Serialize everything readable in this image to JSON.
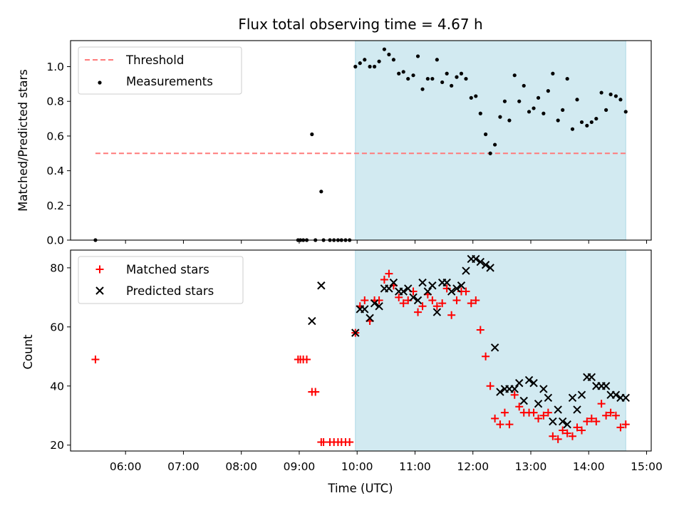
{
  "chart_data": [
    {
      "type": "scatter",
      "title": "Flux total observing time = 4.67 h",
      "xlabel": "",
      "ylabel": "Matched/Predicted stars",
      "ylim": [
        0,
        1.15
      ],
      "yticks": [
        "0.0",
        "0.2",
        "0.4",
        "0.6",
        "0.8",
        "1.0"
      ],
      "ytick_values": [
        0,
        0.2,
        0.4,
        0.6,
        0.8,
        1.0
      ],
      "xlim": [
        5.05,
        15.08
      ],
      "shaded_interval": [
        9.97,
        14.64
      ],
      "shade_color": "#add8e6",
      "legend_placement": "upper-left",
      "series": [
        {
          "name": "Threshold",
          "kind": "dashed-line",
          "color": "#ff7b7b",
          "x": [
            5.48,
            14.64
          ],
          "y": [
            0.5,
            0.5
          ]
        },
        {
          "name": "Measurements",
          "kind": "dot",
          "color": "#000000",
          "x": [
            5.48,
            8.98,
            9.02,
            9.07,
            9.13,
            9.22,
            9.28,
            9.38,
            9.42,
            9.53,
            9.6,
            9.67,
            9.73,
            9.8,
            9.87,
            9.97,
            10.05,
            10.13,
            10.22,
            10.3,
            10.38,
            10.47,
            10.55,
            10.63,
            10.72,
            10.8,
            10.88,
            10.97,
            11.05,
            11.13,
            11.22,
            11.3,
            11.38,
            11.47,
            11.55,
            11.63,
            11.72,
            11.8,
            11.88,
            11.97,
            12.05,
            12.13,
            12.22,
            12.3,
            12.38,
            12.47,
            12.55,
            12.63,
            12.72,
            12.8,
            12.88,
            12.97,
            13.05,
            13.13,
            13.22,
            13.3,
            13.38,
            13.47,
            13.55,
            13.63,
            13.72,
            13.8,
            13.88,
            13.97,
            14.05,
            14.13,
            14.22,
            14.3,
            14.38,
            14.47,
            14.55,
            14.64
          ],
          "y": [
            0.0,
            0.0,
            0.0,
            0.0,
            0.0,
            0.61,
            0.0,
            0.28,
            0.0,
            0.0,
            0.0,
            0.0,
            0.0,
            0.0,
            0.0,
            1.0,
            1.02,
            1.04,
            1.0,
            1.0,
            1.03,
            1.1,
            1.07,
            1.04,
            0.96,
            0.97,
            0.93,
            0.95,
            1.06,
            0.87,
            0.93,
            0.93,
            1.04,
            0.91,
            0.96,
            0.89,
            0.94,
            0.96,
            0.93,
            0.82,
            0.83,
            0.73,
            0.61,
            0.5,
            0.55,
            0.71,
            0.8,
            0.69,
            0.95,
            0.8,
            0.89,
            0.74,
            0.76,
            0.82,
            0.73,
            0.86,
            0.96,
            0.69,
            0.75,
            0.93,
            0.64,
            0.81,
            0.68,
            0.66,
            0.68,
            0.7,
            0.85,
            0.75,
            0.84,
            0.83,
            0.81,
            0.74
          ]
        }
      ]
    },
    {
      "type": "scatter",
      "title": "",
      "xlabel": "Time (UTC)",
      "ylabel": "Count",
      "ylim": [
        18,
        86
      ],
      "yticks": [
        "20",
        "40",
        "60",
        "80"
      ],
      "ytick_values": [
        20,
        40,
        60,
        80
      ],
      "xlim": [
        5.05,
        15.08
      ],
      "xticks": [
        "06:00",
        "07:00",
        "08:00",
        "09:00",
        "10:00",
        "11:00",
        "12:00",
        "13:00",
        "14:00",
        "15:00"
      ],
      "xtick_values": [
        6,
        7,
        8,
        9,
        10,
        11,
        12,
        13,
        14,
        15
      ],
      "shaded_interval": [
        9.97,
        14.64
      ],
      "shade_color": "#add8e6",
      "legend_placement": "upper-left",
      "series": [
        {
          "name": "Matched stars",
          "kind": "plus",
          "color": "#ff0000",
          "x": [
            5.48,
            8.98,
            9.02,
            9.07,
            9.13,
            9.22,
            9.28,
            9.38,
            9.42,
            9.53,
            9.6,
            9.67,
            9.73,
            9.8,
            9.87,
            9.97,
            10.05,
            10.13,
            10.22,
            10.3,
            10.38,
            10.47,
            10.55,
            10.63,
            10.72,
            10.8,
            10.88,
            10.97,
            11.05,
            11.13,
            11.22,
            11.3,
            11.38,
            11.47,
            11.55,
            11.63,
            11.72,
            11.8,
            11.88,
            11.97,
            12.05,
            12.13,
            12.22,
            12.3,
            12.38,
            12.47,
            12.55,
            12.63,
            12.72,
            12.8,
            12.88,
            12.97,
            13.05,
            13.13,
            13.22,
            13.3,
            13.38,
            13.47,
            13.55,
            13.63,
            13.72,
            13.8,
            13.88,
            13.97,
            14.05,
            14.13,
            14.22,
            14.3,
            14.38,
            14.47,
            14.55,
            14.64
          ],
          "y": [
            49,
            49,
            49,
            49,
            49,
            38,
            38,
            21,
            21,
            21,
            21,
            21,
            21,
            21,
            21,
            58,
            67,
            69,
            62,
            69,
            69,
            76,
            78,
            74,
            70,
            68,
            69,
            72,
            65,
            67,
            71,
            69,
            67,
            68,
            73,
            64,
            69,
            72,
            72,
            68,
            69,
            59,
            50,
            40,
            29,
            27,
            31,
            27,
            37,
            33,
            31,
            31,
            31,
            29,
            30,
            31,
            23,
            22,
            25,
            24,
            23,
            26,
            25,
            28,
            29,
            28,
            34,
            30,
            31,
            30,
            26,
            27
          ]
        },
        {
          "name": "Predicted stars",
          "kind": "cross",
          "color": "#000000",
          "x": [
            9.22,
            9.38,
            9.97,
            10.05,
            10.13,
            10.22,
            10.3,
            10.38,
            10.47,
            10.55,
            10.63,
            10.72,
            10.8,
            10.88,
            10.97,
            11.05,
            11.13,
            11.22,
            11.3,
            11.38,
            11.47,
            11.55,
            11.63,
            11.72,
            11.8,
            11.88,
            11.97,
            12.05,
            12.13,
            12.22,
            12.3,
            12.38,
            12.47,
            12.55,
            12.63,
            12.72,
            12.8,
            12.88,
            12.97,
            13.05,
            13.13,
            13.22,
            13.3,
            13.38,
            13.47,
            13.55,
            13.63,
            13.72,
            13.8,
            13.88,
            13.97,
            14.05,
            14.13,
            14.22,
            14.3,
            14.38,
            14.47,
            14.55,
            14.64
          ],
          "y": [
            62,
            74,
            58,
            66,
            66,
            63,
            68,
            67,
            73,
            73,
            75,
            72,
            72,
            73,
            70,
            69,
            75,
            72,
            74,
            65,
            75,
            75,
            72,
            73,
            74,
            79,
            83,
            83,
            82,
            81,
            80,
            53,
            38,
            39,
            39,
            39,
            41,
            35,
            42,
            41,
            34,
            39,
            36,
            28,
            32,
            28,
            27,
            36,
            32,
            37,
            43,
            43,
            40,
            40,
            40,
            37,
            37,
            36,
            36
          ]
        }
      ]
    }
  ]
}
